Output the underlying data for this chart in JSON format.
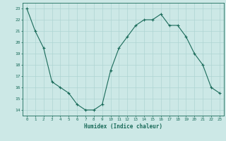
{
  "x": [
    0,
    1,
    2,
    3,
    4,
    5,
    6,
    7,
    8,
    9,
    10,
    11,
    12,
    13,
    14,
    15,
    16,
    17,
    18,
    19,
    20,
    21,
    22,
    23
  ],
  "y": [
    23,
    21,
    19.5,
    16.5,
    16,
    15.5,
    14.5,
    14,
    14,
    14.5,
    17.5,
    19.5,
    20.5,
    21.5,
    22,
    22,
    22.5,
    21.5,
    21.5,
    20.5,
    19,
    18,
    16,
    15.5
  ],
  "xlabel": "Humidex (Indice chaleur)",
  "xlim": [
    -0.5,
    23.5
  ],
  "ylim": [
    13.5,
    23.5
  ],
  "yticks": [
    14,
    15,
    16,
    17,
    18,
    19,
    20,
    21,
    22,
    23
  ],
  "xticks": [
    0,
    1,
    2,
    3,
    4,
    5,
    6,
    7,
    8,
    9,
    10,
    11,
    12,
    13,
    14,
    15,
    16,
    17,
    18,
    19,
    20,
    21,
    22,
    23
  ],
  "line_color": "#1a6b5a",
  "marker": "+",
  "bg_color": "#cce8e6",
  "grid_color": "#aed4d2",
  "axis_color": "#1a6b5a",
  "font_color": "#1a6b5a"
}
